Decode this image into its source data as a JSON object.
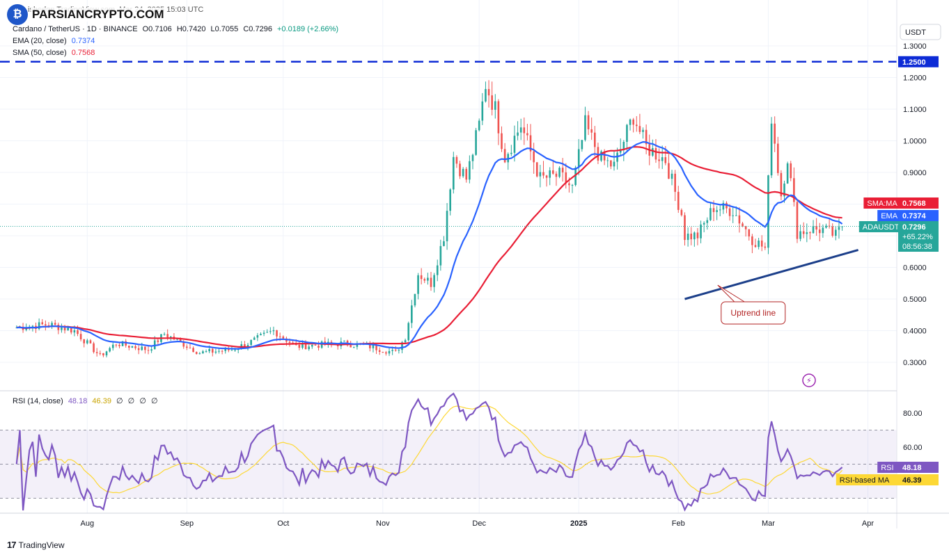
{
  "watermark": {
    "brand": "PARSIANCRYPTO.COM"
  },
  "header": {
    "title_line": "Cardano / TetherUS · 1D · BINANCE",
    "publish_info": "ishedon TradingView.com, Mar 24, 2025 15:03 UTC",
    "ohlc": {
      "o": "O0.7106",
      "h": "H0.7420",
      "l": "L0.7055",
      "c": "C0.7296",
      "change": "+0.0189 (+2.66%)"
    },
    "ema_label": "EMA (20, close)",
    "ema_value": "0.7374",
    "sma_label": "SMA (50, close)",
    "sma_value": "0.7568",
    "rsi_label": "RSI (14, close)",
    "rsi_value": "48.18",
    "rsi_ma_value": "46.39",
    "rsi_extras": [
      "∅",
      "∅",
      "∅",
      "∅"
    ]
  },
  "footer": {
    "brand": "TradingView"
  },
  "colors": {
    "up": "#26a69a",
    "down": "#ef5350",
    "ema": "#2962ff",
    "sma": "#e91e35",
    "rsi": "#7e57c2",
    "rsi_ma": "#fdd835",
    "resistance": "#0d2bd6",
    "trendline": "#1c3f8a",
    "annotation": "#b22222"
  },
  "chart_data": [
    {
      "type": "candlestick",
      "title": "Cardano / TetherUS · 1D · BINANCE",
      "currency_label": "USDT",
      "y_ticks": [
        0.3,
        0.4,
        0.5,
        0.6,
        0.7,
        0.8,
        0.9,
        1.0,
        1.1,
        1.2,
        1.3
      ],
      "y_tick_labels": [
        "0.3000",
        "0.4000",
        "0.5000",
        "0.6000",
        "0.7000",
        "0.8000",
        "0.9000",
        "1.0000",
        "1.1000",
        "1.2000",
        "1.3000"
      ],
      "x_labels": [
        {
          "date": "2024-08-01",
          "label": "Aug"
        },
        {
          "date": "2024-09-01",
          "label": "Sep"
        },
        {
          "date": "2024-10-01",
          "label": "Oct"
        },
        {
          "date": "2024-11-01",
          "label": "Nov"
        },
        {
          "date": "2024-12-01",
          "label": "Dec"
        },
        {
          "date": "2025-01-01",
          "label": "2025"
        },
        {
          "date": "2025-02-01",
          "label": "Feb"
        },
        {
          "date": "2025-03-01",
          "label": "Mar"
        },
        {
          "date": "2025-04-01",
          "label": "Apr"
        }
      ],
      "price_path": [
        [
          "2024-07-10",
          0.41
        ],
        [
          "2024-07-20",
          0.42
        ],
        [
          "2024-07-28",
          0.4
        ],
        [
          "2024-08-05",
          0.32
        ],
        [
          "2024-08-10",
          0.36
        ],
        [
          "2024-08-20",
          0.34
        ],
        [
          "2024-08-25",
          0.39
        ],
        [
          "2024-09-05",
          0.33
        ],
        [
          "2024-09-15",
          0.34
        ],
        [
          "2024-09-20",
          0.36
        ],
        [
          "2024-09-28",
          0.4
        ],
        [
          "2024-10-05",
          0.35
        ],
        [
          "2024-10-20",
          0.36
        ],
        [
          "2024-10-28",
          0.35
        ],
        [
          "2024-11-05",
          0.33
        ],
        [
          "2024-11-08",
          0.38
        ],
        [
          "2024-11-12",
          0.58
        ],
        [
          "2024-11-16",
          0.55
        ],
        [
          "2024-11-20",
          0.7
        ],
        [
          "2024-11-23",
          0.95
        ],
        [
          "2024-11-27",
          0.88
        ],
        [
          "2024-12-01",
          1.05
        ],
        [
          "2024-12-03",
          1.18
        ],
        [
          "2024-12-06",
          1.1
        ],
        [
          "2024-12-09",
          0.95
        ],
        [
          "2024-12-14",
          1.05
        ],
        [
          "2024-12-20",
          0.88
        ],
        [
          "2024-12-26",
          0.89
        ],
        [
          "2024-12-30",
          0.85
        ],
        [
          "2025-01-03",
          1.05
        ],
        [
          "2025-01-08",
          0.94
        ],
        [
          "2025-01-12",
          0.92
        ],
        [
          "2025-01-18",
          1.08
        ],
        [
          "2025-01-22",
          0.98
        ],
        [
          "2025-01-28",
          0.94
        ],
        [
          "2025-02-02",
          0.77
        ],
        [
          "2025-02-03",
          0.7
        ],
        [
          "2025-02-07",
          0.7
        ],
        [
          "2025-02-12",
          0.79
        ],
        [
          "2025-02-18",
          0.78
        ],
        [
          "2025-02-24",
          0.69
        ],
        [
          "2025-02-28",
          0.66
        ],
        [
          "2025-03-02",
          1.08
        ],
        [
          "2025-03-05",
          0.83
        ],
        [
          "2025-03-07",
          0.95
        ],
        [
          "2025-03-10",
          0.71
        ],
        [
          "2025-03-14",
          0.72
        ],
        [
          "2025-03-18",
          0.72
        ],
        [
          "2025-03-22",
          0.7
        ],
        [
          "2025-03-24",
          0.7296
        ]
      ],
      "last_close": 0.7296,
      "resistance_level": 1.25,
      "resistance_label": "1.2500",
      "trendline": {
        "start": [
          "2025-02-03",
          0.5
        ],
        "end": [
          "2025-03-29",
          0.655
        ]
      },
      "annotation": "Uptrend line",
      "ema20_last": 0.7374,
      "sma50_last": 0.7568,
      "price_tags": [
        {
          "name": "SMA:MA",
          "value": "0.7568"
        },
        {
          "name": "EMA",
          "value": "0.7374"
        },
        {
          "name": "ADAUSDT",
          "value": "0.7296",
          "extra1": "+65.22%",
          "extra2": "08:56:38"
        }
      ]
    },
    {
      "type": "line",
      "title": "RSI (14, close)",
      "y_ticks": [
        40,
        60,
        80
      ],
      "y_tick_labels": [
        "",
        "60.00",
        "80.00"
      ],
      "bands": {
        "upper": 70,
        "middle": 50,
        "lower": 30
      },
      "series": [
        {
          "name": "RSI",
          "last": "48.18"
        },
        {
          "name": "RSI-based MA",
          "last": "46.39"
        }
      ]
    }
  ]
}
